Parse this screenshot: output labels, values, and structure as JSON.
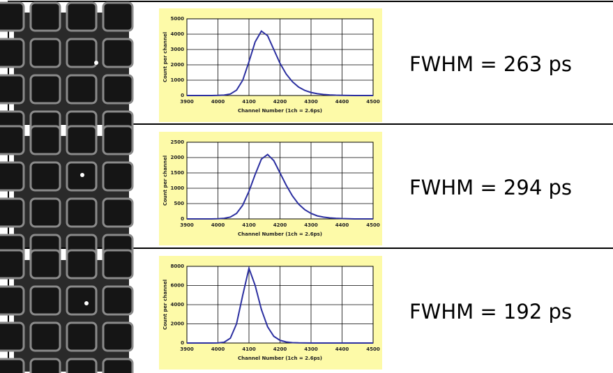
{
  "chart_data": [
    {
      "type": "line",
      "annotation": "FWHM = 263 ps",
      "x_label": "Channel Number (1ch = 2.6ps)",
      "y_label": "Count per channel",
      "color": "#2b2fa0",
      "grid": true,
      "xlim": [
        3900,
        4500
      ],
      "xticks": [
        3900,
        4000,
        4100,
        4200,
        4300,
        4400,
        4500
      ],
      "ylim": [
        0,
        5000
      ],
      "yticks": [
        0,
        1000,
        2000,
        3000,
        4000,
        5000
      ],
      "x": [
        3900,
        3920,
        3940,
        3960,
        3980,
        4000,
        4020,
        4040,
        4060,
        4080,
        4100,
        4120,
        4140,
        4160,
        4180,
        4200,
        4220,
        4240,
        4260,
        4280,
        4300,
        4320,
        4340,
        4360,
        4380,
        4400,
        4420,
        4440,
        4460,
        4480,
        4500
      ],
      "values": [
        0,
        0,
        0,
        0,
        0,
        10,
        30,
        100,
        350,
        1000,
        2200,
        3500,
        4200,
        3900,
        3000,
        2100,
        1400,
        900,
        550,
        330,
        200,
        120,
        70,
        40,
        20,
        10,
        5,
        0,
        0,
        0,
        0
      ]
    },
    {
      "type": "line",
      "annotation": "FWHM = 294 ps",
      "x_label": "Channel Number (1ch = 2.6ps)",
      "y_label": "Count per channel",
      "color": "#2b2fa0",
      "grid": true,
      "xlim": [
        3900,
        4500
      ],
      "xticks": [
        3900,
        4000,
        4100,
        4200,
        4300,
        4400,
        4500
      ],
      "ylim": [
        0,
        2500
      ],
      "yticks": [
        0,
        500,
        1000,
        1500,
        2000,
        2500
      ],
      "x": [
        3900,
        3920,
        3940,
        3960,
        3980,
        4000,
        4020,
        4040,
        4060,
        4080,
        4100,
        4120,
        4140,
        4160,
        4180,
        4200,
        4220,
        4240,
        4260,
        4280,
        4300,
        4320,
        4340,
        4360,
        4380,
        4400,
        4420,
        4440,
        4460,
        4480,
        4500
      ],
      "values": [
        0,
        0,
        0,
        0,
        0,
        5,
        20,
        60,
        180,
        450,
        900,
        1450,
        1950,
        2100,
        1900,
        1500,
        1100,
        750,
        480,
        300,
        180,
        100,
        60,
        35,
        20,
        10,
        5,
        0,
        0,
        0,
        0
      ]
    },
    {
      "type": "line",
      "annotation": "FWHM = 192 ps",
      "x_label": "Channel Number (1ch = 2.6ps)",
      "y_label": "Count per channel",
      "color": "#2b2fa0",
      "grid": true,
      "xlim": [
        3900,
        4500
      ],
      "xticks": [
        3900,
        4000,
        4100,
        4200,
        4300,
        4400,
        4500
      ],
      "ylim": [
        0,
        8000
      ],
      "yticks": [
        0,
        2000,
        4000,
        6000,
        8000
      ],
      "x": [
        3900,
        3920,
        3940,
        3960,
        3980,
        4000,
        4020,
        4040,
        4060,
        4080,
        4100,
        4120,
        4140,
        4160,
        4180,
        4200,
        4220,
        4240,
        4260,
        4280,
        4300,
        4320,
        4340,
        4360,
        4380,
        4400,
        4420,
        4440,
        4460,
        4480,
        4500
      ],
      "values": [
        0,
        0,
        0,
        0,
        0,
        10,
        80,
        500,
        2000,
        5000,
        7800,
        6000,
        3500,
        1700,
        700,
        280,
        110,
        40,
        15,
        5,
        0,
        0,
        0,
        0,
        0,
        0,
        0,
        0,
        0,
        0,
        0
      ]
    }
  ]
}
